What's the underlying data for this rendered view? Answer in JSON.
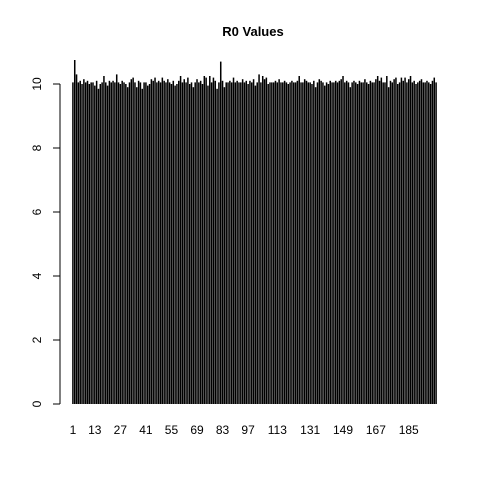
{
  "chart_data": {
    "type": "bar",
    "title": "R0 Values",
    "xlabel": "",
    "ylabel": "",
    "ylim": [
      0,
      11
    ],
    "y_ticks": [
      0,
      2,
      4,
      6,
      8,
      10
    ],
    "x_tick_labels": [
      "1",
      "13",
      "27",
      "41",
      "55",
      "69",
      "83",
      "97",
      "113",
      "131",
      "149",
      "167",
      "185"
    ],
    "x_tick_indices": [
      1,
      13,
      27,
      41,
      55,
      69,
      83,
      97,
      113,
      131,
      149,
      167,
      185
    ],
    "bar_fill": "#000000",
    "bar_edge": "#ffffff",
    "grid": false,
    "legend": "none",
    "values": [
      10.05,
      10.75,
      10.3,
      10.05,
      10.1,
      10.0,
      10.15,
      10.05,
      10.1,
      10.0,
      10.05,
      10.05,
      9.95,
      10.1,
      9.85,
      10.0,
      10.05,
      10.25,
      10.05,
      9.95,
      10.1,
      10.05,
      10.1,
      10.05,
      10.3,
      10.05,
      10.0,
      10.1,
      10.05,
      10.0,
      9.9,
      10.05,
      10.15,
      10.2,
      10.05,
      9.9,
      10.1,
      10.05,
      9.85,
      10.05,
      10.05,
      9.95,
      10.0,
      10.15,
      10.1,
      10.2,
      10.05,
      10.1,
      10.05,
      10.2,
      10.1,
      10.05,
      10.15,
      10.05,
      10.0,
      10.1,
      9.95,
      10.0,
      10.1,
      10.25,
      10.05,
      10.15,
      10.05,
      10.2,
      10.0,
      10.05,
      9.9,
      10.05,
      10.15,
      10.05,
      10.1,
      10.0,
      10.25,
      10.2,
      9.95,
      10.25,
      10.05,
      10.2,
      10.1,
      9.85,
      10.05,
      10.7,
      10.1,
      9.9,
      10.05,
      10.05,
      10.1,
      10.05,
      10.2,
      10.05,
      10.1,
      10.05,
      10.05,
      10.15,
      10.05,
      10.1,
      10.0,
      10.1,
      10.05,
      10.15,
      9.95,
      10.05,
      10.3,
      10.05,
      10.25,
      10.15,
      10.2,
      10.0,
      10.05,
      10.05,
      10.05,
      10.1,
      10.05,
      10.15,
      10.05,
      10.05,
      10.1,
      10.05,
      10.0,
      10.05,
      10.1,
      10.05,
      10.05,
      10.1,
      10.25,
      10.05,
      10.05,
      10.15,
      10.1,
      10.05,
      10.05,
      10.0,
      10.1,
      9.9,
      10.05,
      10.15,
      10.1,
      10.05,
      9.95,
      10.05,
      10.0,
      10.1,
      10.05,
      10.05,
      10.1,
      10.05,
      10.1,
      10.15,
      10.25,
      10.05,
      10.1,
      10.05,
      9.9,
      10.05,
      10.1,
      10.05,
      10.0,
      10.1,
      10.05,
      10.05,
      10.15,
      10.05,
      10.0,
      10.1,
      10.05,
      10.05,
      10.15,
      10.25,
      10.1,
      10.2,
      10.05,
      10.05,
      10.25,
      9.9,
      10.1,
      10.05,
      10.15,
      10.2,
      10.0,
      10.05,
      10.2,
      10.1,
      10.2,
      10.05,
      10.15,
      10.25,
      10.05,
      10.1,
      10.0,
      10.05,
      10.1,
      10.15,
      10.05,
      10.05,
      10.1,
      10.05,
      10.0,
      10.1,
      10.2,
      10.05
    ]
  }
}
